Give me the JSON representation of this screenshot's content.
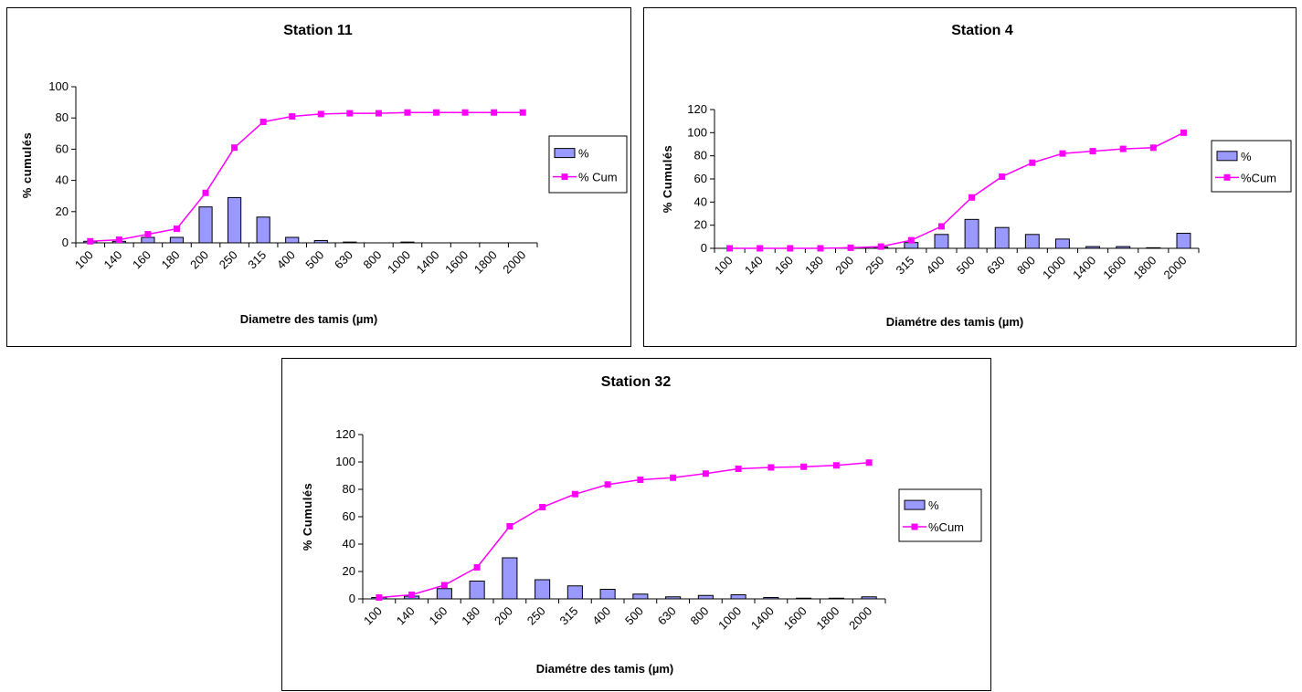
{
  "chart_data": [
    {
      "type": "bar",
      "title": "Station 11",
      "xlabel": "Diametre des tamis (µm)",
      "ylabel": "% cumulés",
      "categories": [
        "100",
        "140",
        "160",
        "180",
        "200",
        "250",
        "315",
        "400",
        "500",
        "630",
        "800",
        "1000",
        "1400",
        "1600",
        "1800",
        "2000"
      ],
      "ylim": [
        0,
        100
      ],
      "yticks": [
        0,
        20,
        40,
        60,
        80,
        100
      ],
      "grid": false,
      "legend_position": "right",
      "series": [
        {
          "name": "%",
          "type": "bar",
          "color": "#9999ff",
          "values": [
            1,
            1,
            3.5,
            3.5,
            23,
            29,
            16.5,
            3.5,
            1.5,
            0.5,
            0,
            0.5,
            0,
            0,
            0,
            0
          ]
        },
        {
          "name": "% Cum",
          "type": "line",
          "color": "#ff00ff",
          "values": [
            1,
            2,
            5.5,
            9,
            32,
            61,
            77.5,
            81,
            82.5,
            83,
            83,
            83.5,
            83.5,
            83.5,
            83.5,
            83.5
          ]
        }
      ]
    },
    {
      "type": "bar",
      "title": "Station 4",
      "xlabel": "Diamétre des tamis (µm)",
      "ylabel": "% Cumulés",
      "categories": [
        "100",
        "140",
        "160",
        "180",
        "200",
        "250",
        "315",
        "400",
        "500",
        "630",
        "800",
        "1000",
        "1400",
        "1600",
        "1800",
        "2000"
      ],
      "ylim": [
        0,
        120
      ],
      "yticks": [
        0,
        20,
        40,
        60,
        80,
        100,
        120
      ],
      "grid": false,
      "legend_position": "right",
      "series": [
        {
          "name": "%",
          "type": "bar",
          "color": "#9999ff",
          "values": [
            0,
            0,
            0,
            0,
            0.5,
            1,
            5,
            12,
            25,
            18,
            12,
            8,
            1.5,
            1.5,
            0.5,
            13
          ]
        },
        {
          "name": "%Cum",
          "type": "line",
          "color": "#ff00ff",
          "values": [
            0,
            0,
            0,
            0,
            0.5,
            1.5,
            7,
            19,
            44,
            62,
            74,
            82,
            84,
            86,
            87,
            100
          ]
        }
      ]
    },
    {
      "type": "bar",
      "title": "Station 32",
      "xlabel": "Diamétre des tamis (µm)",
      "ylabel": "% Cumulés",
      "categories": [
        "100",
        "140",
        "160",
        "180",
        "200",
        "250",
        "315",
        "400",
        "500",
        "630",
        "800",
        "1000",
        "1400",
        "1600",
        "1800",
        "2000"
      ],
      "ylim": [
        0,
        120
      ],
      "yticks": [
        0,
        20,
        40,
        60,
        80,
        100,
        120
      ],
      "grid": false,
      "legend_position": "right",
      "series": [
        {
          "name": "%",
          "type": "bar",
          "color": "#9999ff",
          "values": [
            1,
            2,
            7.5,
            13,
            30,
            14,
            9.5,
            7,
            3.5,
            1.5,
            2.5,
            3,
            1,
            0.5,
            0.5,
            1.5
          ]
        },
        {
          "name": "%Cum",
          "type": "line",
          "color": "#ff00ff",
          "values": [
            1,
            3,
            10,
            23,
            53,
            67,
            76.5,
            83.5,
            87,
            88.5,
            91.5,
            95,
            96,
            96.5,
            97.5,
            99.5
          ]
        }
      ]
    }
  ]
}
